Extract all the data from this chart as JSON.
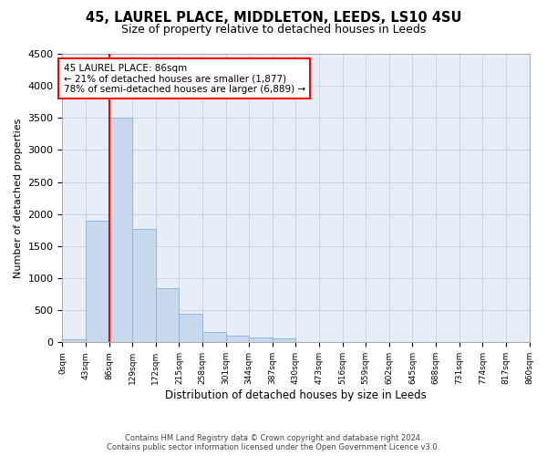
{
  "title": "45, LAUREL PLACE, MIDDLETON, LEEDS, LS10 4SU",
  "subtitle": "Size of property relative to detached houses in Leeds",
  "xlabel": "Distribution of detached houses by size in Leeds",
  "ylabel": "Number of detached properties",
  "footer_line1": "Contains HM Land Registry data © Crown copyright and database right 2024.",
  "footer_line2": "Contains public sector information licensed under the Open Government Licence v3.0.",
  "bar_edges": [
    0,
    43,
    86,
    129,
    172,
    215,
    258,
    301,
    344,
    387,
    430,
    473,
    516,
    559,
    602,
    645,
    688,
    731,
    774,
    817,
    860
  ],
  "bar_heights": [
    50,
    1900,
    3500,
    1770,
    840,
    450,
    160,
    100,
    70,
    55,
    0,
    0,
    0,
    0,
    0,
    0,
    0,
    0,
    0,
    0
  ],
  "bar_color": "#c8d9ee",
  "bar_edge_color": "#8ab0d4",
  "vline_x": 86,
  "vline_color": "red",
  "annotation_text_line1": "45 LAUREL PLACE: 86sqm",
  "annotation_text_line2": "← 21% of detached houses are smaller (1,877)",
  "annotation_text_line3": "78% of semi-detached houses are larger (6,889) →",
  "annotation_box_color": "red",
  "annotation_fill": "white",
  "ylim": [
    0,
    4500
  ],
  "yticks": [
    0,
    500,
    1000,
    1500,
    2000,
    2500,
    3000,
    3500,
    4000,
    4500
  ],
  "tick_labels": [
    "0sqm",
    "43sqm",
    "86sqm",
    "129sqm",
    "172sqm",
    "215sqm",
    "258sqm",
    "301sqm",
    "344sqm",
    "387sqm",
    "430sqm",
    "473sqm",
    "516sqm",
    "559sqm",
    "602sqm",
    "645sqm",
    "688sqm",
    "731sqm",
    "774sqm",
    "817sqm",
    "860sqm"
  ],
  "grid_color": "#c8d4e4",
  "background_color": "#e8eef8",
  "title_fontsize": 10.5,
  "subtitle_fontsize": 9
}
